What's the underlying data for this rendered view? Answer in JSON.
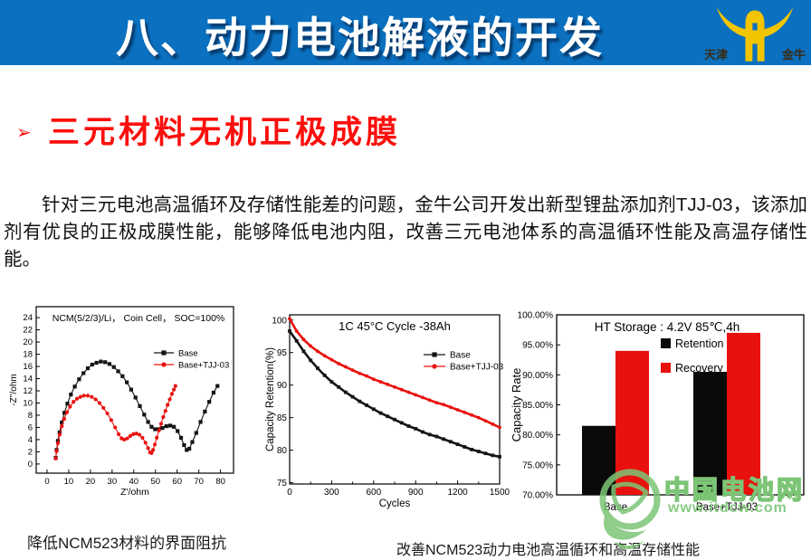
{
  "header": {
    "title": "八、动力电池解液的开发",
    "logo_text_left": "天津",
    "logo_text_right": "金牛"
  },
  "section": {
    "bullet_glyph": "➢",
    "heading": "三元材料无机正极成膜",
    "paragraph": "针对三元电池高温循环及存储性能差的问题，金牛公司开发出新型锂盐添加剂TJJ-03，该添加剂有优良的正极成膜性能，能够降低电池内阻，改善三元电池体系的高温循环性能及高温存储性能。"
  },
  "captions": {
    "left": "降低NCM523材料的界面阻抗",
    "right": "改善NCM523动力电池高温循环和高温存储性能"
  },
  "watermark": {
    "name": "中国电池网",
    "url": "www.itdcw.com"
  },
  "colors": {
    "banner_blue": "#0a70bf",
    "accent_red": "#fb0f0c",
    "chart_black": "#141414",
    "chart_red": "#e8110d",
    "logo_yellow": "#f2c500",
    "watermark_green": "#7cc576"
  },
  "chart_data": [
    {
      "type": "scatter",
      "title": "NCM(5/2/3)/Li， Coin Cell， SOC=100%",
      "xlabel": "Z'/ohm",
      "ylabel": "-Z''/ohm",
      "xlim": [
        -5,
        86
      ],
      "ylim": [
        -1.5,
        25.8
      ],
      "xticks": [
        0,
        10,
        20,
        30,
        40,
        50,
        60,
        70,
        80
      ],
      "yticks": [
        0,
        2,
        4,
        6,
        8,
        10,
        12,
        14,
        16,
        18,
        20,
        22,
        24
      ],
      "legend_position": "upper-right",
      "grid": false,
      "series": [
        {
          "name": "Base",
          "color": "#141414",
          "marker": "square",
          "points": [
            [
              4,
              1
            ],
            [
              4.4,
              2.3
            ],
            [
              5,
              3.8
            ],
            [
              5.8,
              5.2
            ],
            [
              6.8,
              6.8
            ],
            [
              8,
              8.4
            ],
            [
              9.4,
              9.9
            ],
            [
              11,
              11.4
            ],
            [
              12.8,
              12.7
            ],
            [
              14.8,
              13.9
            ],
            [
              16.8,
              14.9
            ],
            [
              18.8,
              15.7
            ],
            [
              20.8,
              16.3
            ],
            [
              22.8,
              16.6
            ],
            [
              24.8,
              16.8
            ],
            [
              26.8,
              16.7
            ],
            [
              28.8,
              16.4
            ],
            [
              30.8,
              15.9
            ],
            [
              32.8,
              15.2
            ],
            [
              34.8,
              14.4
            ],
            [
              36.8,
              13.4
            ],
            [
              38.8,
              12.2
            ],
            [
              40.8,
              10.9
            ],
            [
              42.8,
              9.5
            ],
            [
              44.8,
              8.1
            ],
            [
              46.6,
              6.9
            ],
            [
              48.2,
              6.1
            ],
            [
              49.8,
              5.7
            ],
            [
              51.5,
              5.7
            ],
            [
              53.2,
              5.9
            ],
            [
              55,
              6.2
            ],
            [
              56.8,
              6.3
            ],
            [
              58.5,
              6.1
            ],
            [
              60.2,
              5.4
            ],
            [
              61.8,
              4.3
            ],
            [
              63.2,
              3.1
            ],
            [
              64.4,
              2.3
            ],
            [
              65.6,
              2.5
            ],
            [
              67,
              3.6
            ],
            [
              68.8,
              5.1
            ],
            [
              70.8,
              6.9
            ],
            [
              72.8,
              8.6
            ],
            [
              74.8,
              10.2
            ],
            [
              76.8,
              11.7
            ],
            [
              78.6,
              12.8
            ]
          ]
        },
        {
          "name": "Base+TJJ-03",
          "color": "#e8110d",
          "marker": "circle",
          "points": [
            [
              4,
              0.9
            ],
            [
              4.4,
              2.1
            ],
            [
              5,
              3.4
            ],
            [
              5.8,
              4.8
            ],
            [
              6.8,
              6.2
            ],
            [
              7.9,
              7.4
            ],
            [
              9.2,
              8.5
            ],
            [
              10.6,
              9.4
            ],
            [
              12.2,
              10.2
            ],
            [
              13.8,
              10.7
            ],
            [
              15.4,
              11.0
            ],
            [
              17,
              11.2
            ],
            [
              18.8,
              11.2
            ],
            [
              20.6,
              11.0
            ],
            [
              22.4,
              10.6
            ],
            [
              24.2,
              10.0
            ],
            [
              26,
              9.2
            ],
            [
              27.8,
              8.3
            ],
            [
              29.6,
              7.2
            ],
            [
              31.4,
              6.0
            ],
            [
              33,
              4.9
            ],
            [
              34.4,
              4.2
            ],
            [
              35.6,
              4.0
            ],
            [
              37,
              4.2
            ],
            [
              38.4,
              4.6
            ],
            [
              39.8,
              4.9
            ],
            [
              41.2,
              5.0
            ],
            [
              42.6,
              4.8
            ],
            [
              44,
              4.3
            ],
            [
              45.4,
              3.5
            ],
            [
              46.6,
              2.6
            ],
            [
              47.5,
              1.9
            ],
            [
              48.2,
              1.8
            ],
            [
              48.9,
              2.3
            ],
            [
              49.7,
              3.2
            ],
            [
              50.6,
              4.3
            ],
            [
              51.6,
              5.5
            ],
            [
              52.6,
              6.6
            ],
            [
              53.6,
              7.7
            ],
            [
              54.6,
              8.7
            ],
            [
              55.6,
              9.7
            ],
            [
              56.6,
              10.6
            ],
            [
              57.6,
              11.5
            ],
            [
              58.5,
              12.2
            ],
            [
              59.2,
              12.8
            ]
          ]
        }
      ]
    },
    {
      "type": "line",
      "title": "1C 45°C  Cycle -38Ah",
      "xlabel": "Cycles",
      "ylabel": "Capacity Retention(%)",
      "xlim": [
        0,
        1500
      ],
      "ylim": [
        74.8,
        100.8
      ],
      "xticks": [
        0,
        300,
        600,
        900,
        1200,
        1500
      ],
      "xminor": [
        150,
        450,
        750,
        1050,
        1350
      ],
      "yticks": [
        75,
        80,
        85,
        90,
        95,
        100
      ],
      "legend_position": "right-middle",
      "grid": false,
      "x": [
        0,
        50,
        100,
        150,
        200,
        250,
        300,
        350,
        400,
        450,
        500,
        550,
        600,
        650,
        700,
        750,
        800,
        850,
        900,
        950,
        1000,
        1050,
        1100,
        1150,
        1200,
        1250,
        1300,
        1350,
        1400,
        1450,
        1500
      ],
      "series": [
        {
          "name": "Base",
          "color": "#141414",
          "marker": "square",
          "values": [
            98.3,
            96.8,
            95.2,
            93.8,
            92.6,
            91.5,
            90.5,
            89.7,
            88.9,
            88.2,
            87.5,
            86.9,
            86.3,
            85.7,
            85.2,
            84.7,
            84.2,
            83.7,
            83.3,
            82.8,
            82.4,
            82.1,
            81.7,
            81.3,
            80.9,
            80.5,
            80.1,
            79.8,
            79.5,
            79.2,
            79.0
          ]
        },
        {
          "name": "Base+TJJ-03",
          "color": "#e8110d",
          "marker": "circle",
          "values": [
            100.2,
            98.3,
            97.0,
            96.0,
            95.2,
            94.5,
            93.9,
            93.3,
            92.8,
            92.3,
            91.8,
            91.4,
            90.9,
            90.5,
            90.1,
            89.7,
            89.3,
            88.9,
            88.5,
            88.1,
            87.7,
            87.3,
            87.0,
            86.6,
            86.2,
            85.8,
            85.4,
            85.0,
            84.5,
            84.0,
            83.5
          ]
        }
      ]
    },
    {
      "type": "bar",
      "title": "HT Storage : 4.2V 85℃,4h",
      "ylabel": "Capacity  Rate",
      "categories": [
        "Base",
        "Base+TJJ-03"
      ],
      "ylim": [
        0.7,
        1.0
      ],
      "ytick_labels": [
        "70.00%",
        "75.00%",
        "80.00%",
        "85.00%",
        "90.00%",
        "95.00%",
        "100.00%"
      ],
      "legend_position": "upper-right-inside",
      "grid": false,
      "series": [
        {
          "name": "Retention",
          "color": "#0a0a0a",
          "values": [
            0.815,
            0.905
          ]
        },
        {
          "name": "Recovery",
          "color": "#e8110d",
          "values": [
            0.94,
            0.97
          ]
        }
      ]
    }
  ]
}
